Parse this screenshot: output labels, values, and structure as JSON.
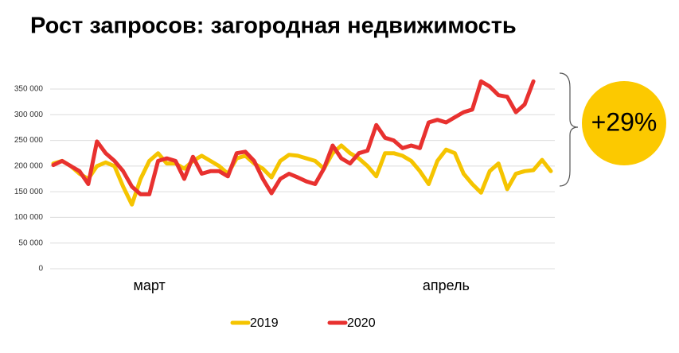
{
  "chart_data": {
    "type": "line",
    "title": "Рост запросов: загородная недвижимость",
    "annotation": "+29%",
    "categories": [
      null,
      null,
      null,
      null,
      null,
      null,
      null,
      null,
      null,
      null,
      null,
      "март",
      null,
      null,
      null,
      null,
      null,
      null,
      null,
      null,
      null,
      null,
      null,
      null,
      null,
      null,
      null,
      null,
      null,
      null,
      null,
      null,
      null,
      null,
      null,
      null,
      null,
      null,
      null,
      null,
      null,
      null,
      null,
      null,
      null,
      "апрель",
      null,
      null,
      null,
      null,
      null,
      null,
      null,
      null,
      null,
      null,
      null,
      null
    ],
    "series": [
      {
        "name": "2019",
        "color": "#f5c400",
        "values": [
          205000,
          210000,
          200000,
          185000,
          175000,
          200000,
          207000,
          200000,
          160000,
          125000,
          175000,
          210000,
          225000,
          205000,
          205000,
          195000,
          210000,
          220000,
          210000,
          200000,
          185000,
          215000,
          220000,
          205000,
          195000,
          178000,
          210000,
          222000,
          220000,
          215000,
          210000,
          195000,
          225000,
          240000,
          225000,
          215000,
          200000,
          180000,
          225000,
          225000,
          220000,
          210000,
          190000,
          165000,
          210000,
          232000,
          225000,
          185000,
          165000,
          148000,
          190000,
          205000,
          155000,
          185000,
          190000,
          192000,
          212000,
          190000
        ]
      },
      {
        "name": "2020",
        "color": "#e8312f",
        "values": [
          202000,
          210000,
          200000,
          190000,
          165000,
          248000,
          225000,
          210000,
          190000,
          160000,
          145000,
          145000,
          210000,
          215000,
          210000,
          175000,
          218000,
          185000,
          190000,
          190000,
          180000,
          225000,
          228000,
          210000,
          175000,
          147000,
          175000,
          185000,
          178000,
          170000,
          165000,
          195000,
          240000,
          215000,
          205000,
          225000,
          230000,
          280000,
          255000,
          250000,
          235000,
          240000,
          235000,
          285000,
          290000,
          285000,
          295000,
          305000,
          310000,
          365000,
          355000,
          338000,
          335000,
          305000,
          320000,
          365000,
          null,
          null
        ]
      }
    ],
    "ylim": [
      0,
      350000
    ],
    "yticks": [
      0,
      {
        "value": 50000,
        "label": "50 000"
      },
      {
        "value": 100000,
        "label": "100 000"
      },
      {
        "value": 150000,
        "label": "150 000"
      },
      {
        "value": 200000,
        "label": "200 000"
      },
      {
        "value": 250000,
        "label": "250 000"
      },
      {
        "value": 300000,
        "label": "300 000"
      },
      {
        "value": 350000,
        "label": "350 000"
      }
    ],
    "grid": true
  }
}
